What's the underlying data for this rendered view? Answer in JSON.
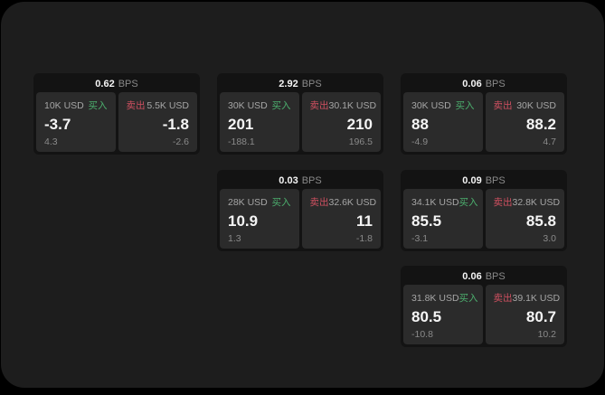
{
  "theme": {
    "page_bg": "#000000",
    "surface_bg": "#1d1d1d",
    "card_bg": "#131313",
    "panel_bg": "#2b2b2b",
    "text_primary": "#f5f5f5",
    "text_secondary": "#a6a6a6",
    "text_muted": "#8a8a8a",
    "buy_color": "#4caf6e",
    "sell_color": "#cf5060"
  },
  "labels": {
    "buy": "买入",
    "sell": "卖出",
    "bps_unit": "BPS"
  },
  "cards": [
    {
      "bps": "0.62",
      "col": 0,
      "row": 0,
      "buy": {
        "amount": "10K USD",
        "value": "-3.7",
        "delta": "4.3"
      },
      "sell": {
        "amount": "5.5K USD",
        "value": "-1.8",
        "delta": "-2.6"
      }
    },
    {
      "bps": "2.92",
      "col": 1,
      "row": 0,
      "buy": {
        "amount": "30K USD",
        "value": "201",
        "delta": "-188.1"
      },
      "sell": {
        "amount": "30.1K USD",
        "value": "210",
        "delta": "196.5"
      }
    },
    {
      "bps": "0.06",
      "col": 2,
      "row": 0,
      "buy": {
        "amount": "30K USD",
        "value": "88",
        "delta": "-4.9"
      },
      "sell": {
        "amount": "30K USD",
        "value": "88.2",
        "delta": "4.7"
      }
    },
    {
      "bps": "0.03",
      "col": 1,
      "row": 1,
      "buy": {
        "amount": "28K USD",
        "value": "10.9",
        "delta": "1.3"
      },
      "sell": {
        "amount": "32.6K USD",
        "value": "11",
        "delta": "-1.8"
      }
    },
    {
      "bps": "0.09",
      "col": 2,
      "row": 1,
      "buy": {
        "amount": "34.1K USD",
        "value": "85.5",
        "delta": "-3.1"
      },
      "sell": {
        "amount": "32.8K USD",
        "value": "85.8",
        "delta": "3.0"
      }
    },
    {
      "bps": "0.06",
      "col": 2,
      "row": 2,
      "buy": {
        "amount": "31.8K USD",
        "value": "80.5",
        "delta": "-10.8"
      },
      "sell": {
        "amount": "39.1K USD",
        "value": "80.7",
        "delta": "10.2"
      }
    }
  ]
}
